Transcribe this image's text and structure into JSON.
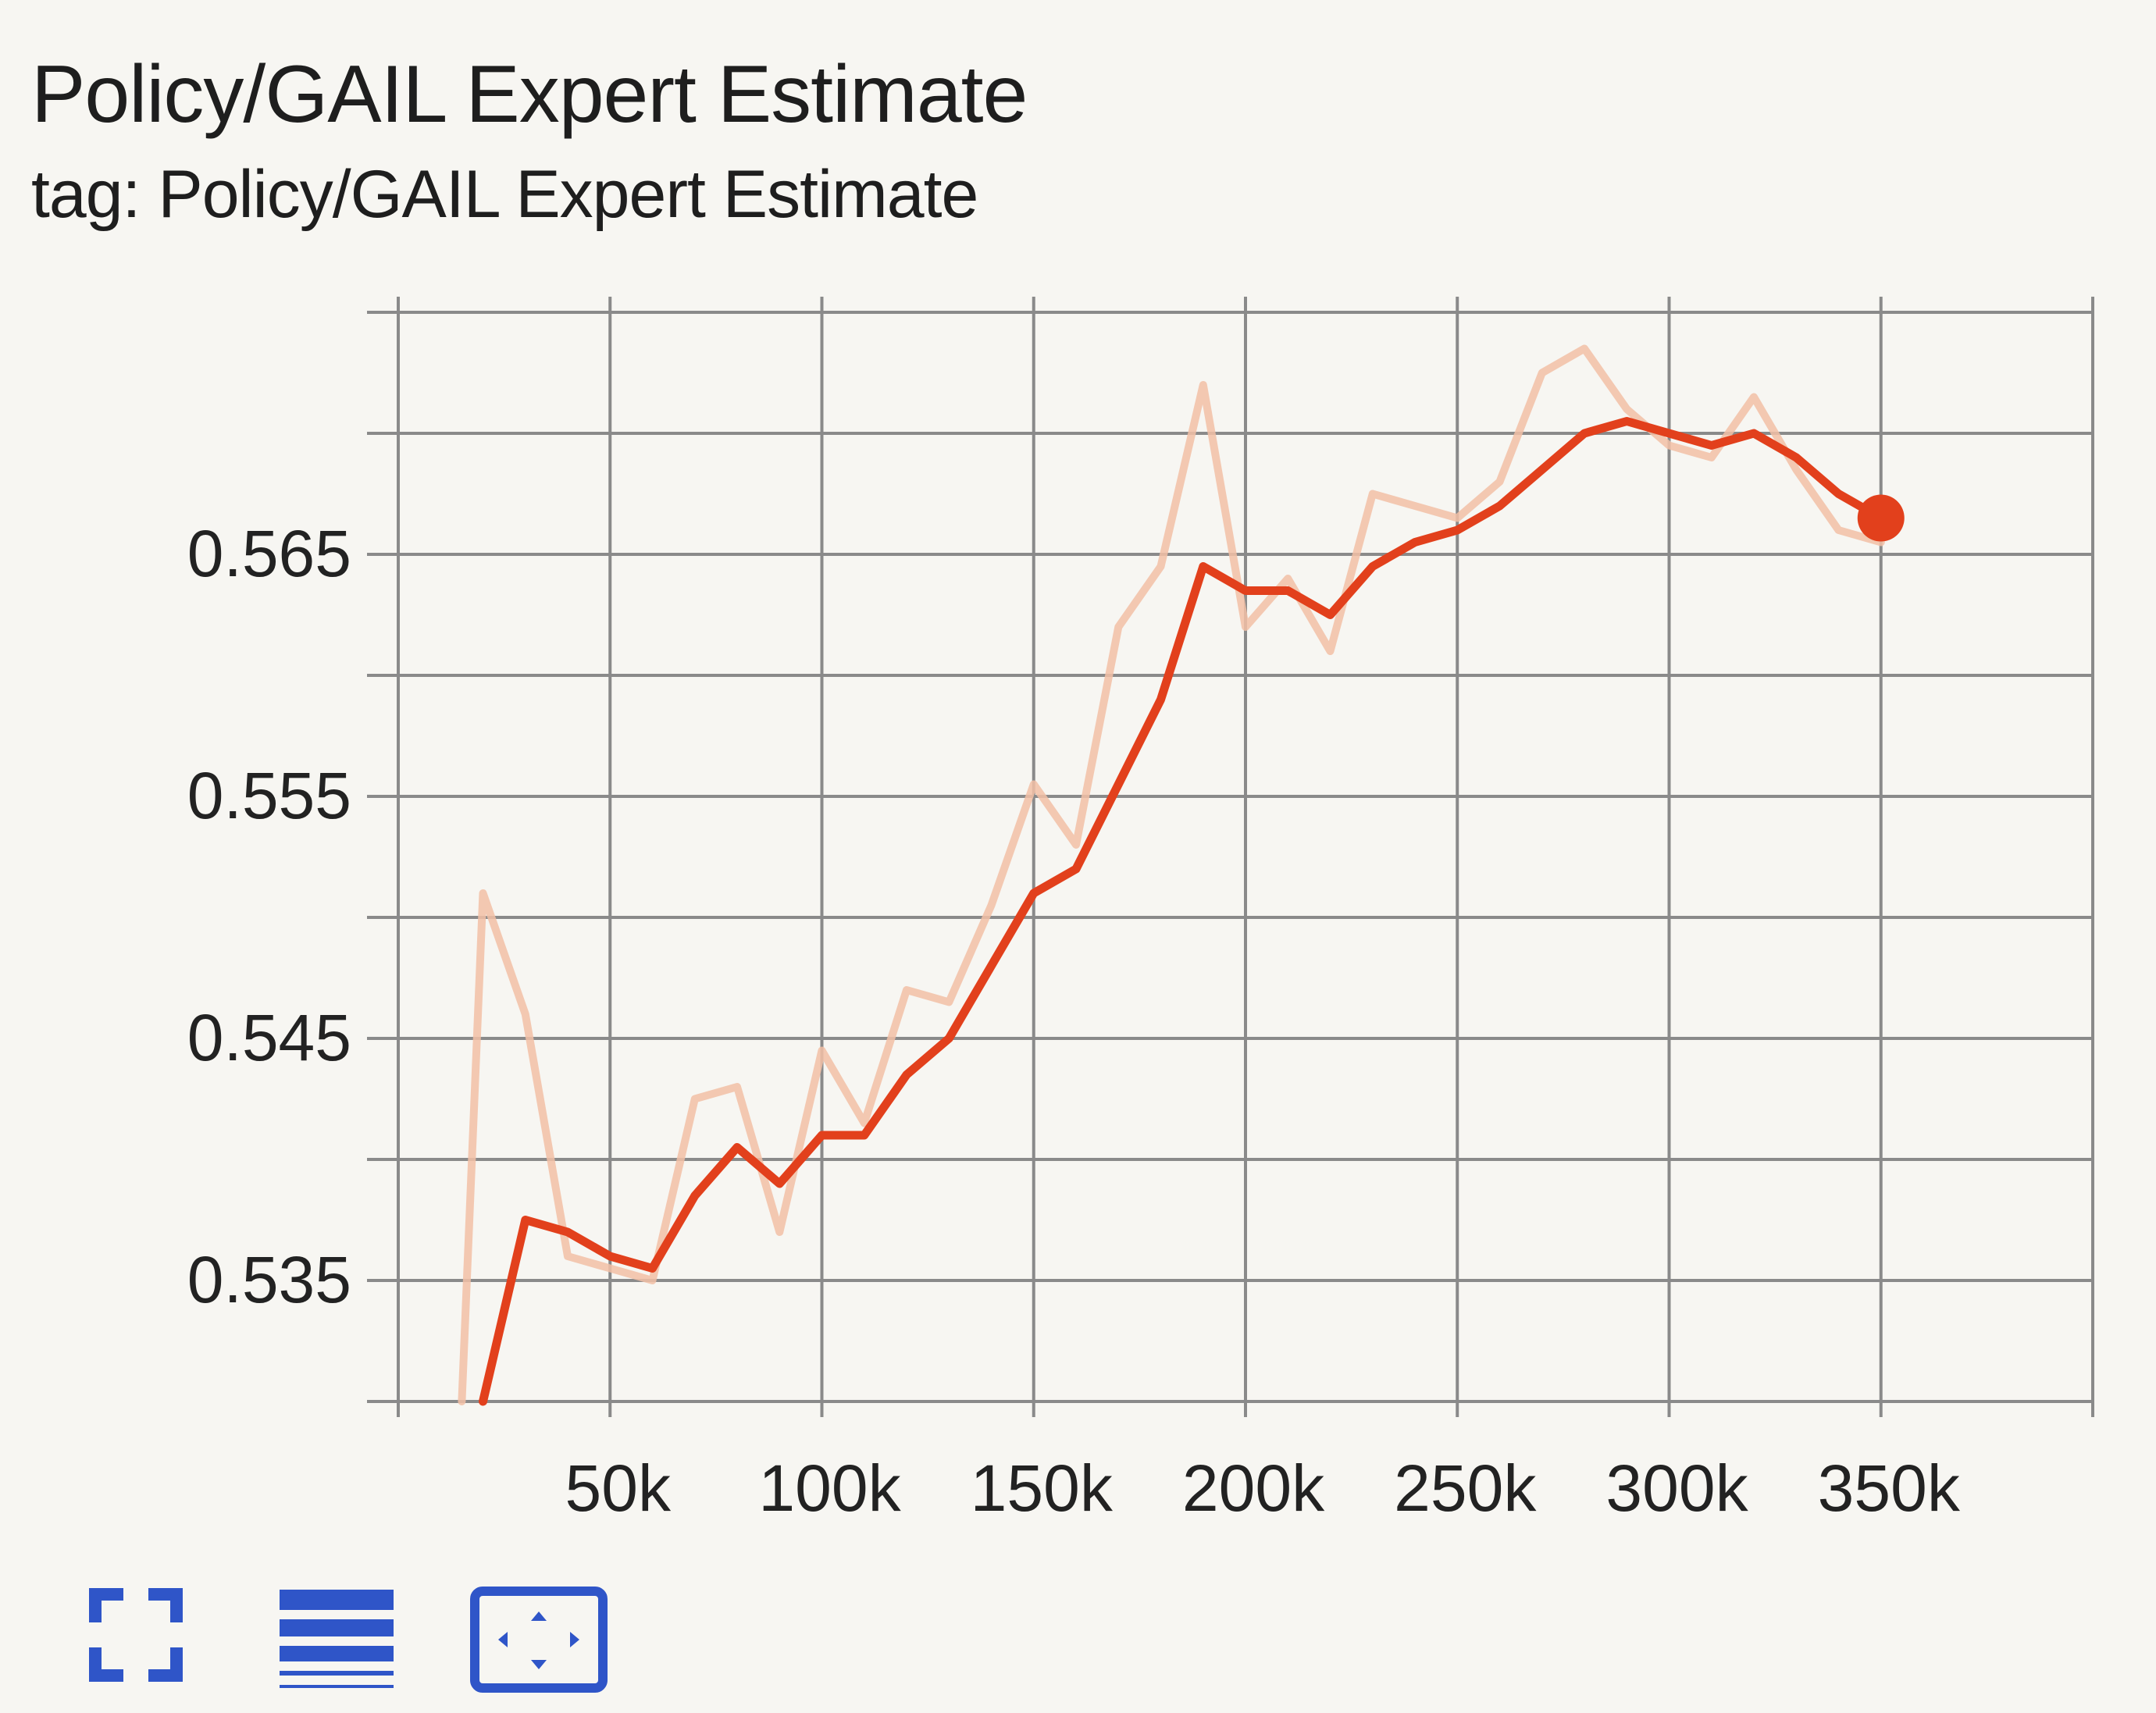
{
  "card": {
    "title": "Policy/GAIL Expert Estimate",
    "subtitle": "tag: Policy/GAIL Expert Estimate"
  },
  "toolbar": {
    "buttons": [
      {
        "icon": "fullscreen-icon"
      },
      {
        "icon": "toggle-log-scale-icon"
      },
      {
        "icon": "fit-domain-icon"
      }
    ],
    "color": "#2f55c8"
  },
  "chart_data": {
    "type": "line",
    "title": "Policy/GAIL Expert Estimate",
    "xlabel": "",
    "ylabel": "",
    "xlim": [
      0,
      400000
    ],
    "ylim": [
      0.53,
      0.575
    ],
    "x_ticks": [
      50000,
      100000,
      150000,
      200000,
      250000,
      300000,
      350000
    ],
    "x_tick_labels": [
      "50k",
      "100k",
      "150k",
      "200k",
      "250k",
      "300k",
      "350k"
    ],
    "y_ticks": [
      0.535,
      0.545,
      0.555,
      0.565
    ],
    "y_tick_labels": [
      "0.535",
      "0.545",
      "0.555",
      "0.565"
    ],
    "grid": true,
    "legend": "none",
    "series": [
      {
        "role": "raw",
        "color": "#f2bfa6",
        "x": [
          15000,
          20000,
          30000,
          40000,
          50000,
          60000,
          70000,
          80000,
          90000,
          100000,
          110000,
          120000,
          130000,
          140000,
          150000,
          160000,
          170000,
          180000,
          190000,
          200000,
          210000,
          220000,
          230000,
          240000,
          250000,
          260000,
          270000,
          280000,
          290000,
          300000,
          310000,
          320000,
          330000,
          340000,
          350000
        ],
        "values": [
          0.53,
          0.551,
          0.546,
          0.536,
          0.5355,
          0.535,
          0.5425,
          0.543,
          0.537,
          0.5445,
          0.5415,
          0.547,
          0.5465,
          0.5505,
          0.5555,
          0.553,
          0.562,
          0.5645,
          0.572,
          0.562,
          0.564,
          0.561,
          0.5675,
          0.567,
          0.5665,
          0.568,
          0.5725,
          0.5735,
          0.571,
          0.5695,
          0.569,
          0.5715,
          0.5685,
          0.566,
          0.5655
        ]
      },
      {
        "role": "smoothed",
        "color": "#e2401c",
        "x": [
          20000,
          30000,
          40000,
          50000,
          60000,
          70000,
          80000,
          90000,
          100000,
          110000,
          120000,
          130000,
          140000,
          150000,
          160000,
          170000,
          180000,
          190000,
          200000,
          210000,
          220000,
          230000,
          240000,
          250000,
          260000,
          270000,
          280000,
          290000,
          300000,
          310000,
          320000,
          330000,
          340000,
          350000
        ],
        "values": [
          0.53,
          0.5375,
          0.537,
          0.536,
          0.5355,
          0.5385,
          0.5405,
          0.539,
          0.541,
          0.541,
          0.5435,
          0.545,
          0.548,
          0.551,
          0.552,
          0.5555,
          0.559,
          0.5645,
          0.5635,
          0.5635,
          0.5625,
          0.5645,
          0.5655,
          0.566,
          0.567,
          0.5685,
          0.57,
          0.5705,
          0.57,
          0.5695,
          0.57,
          0.569,
          0.5675,
          0.5665
        ]
      }
    ]
  }
}
